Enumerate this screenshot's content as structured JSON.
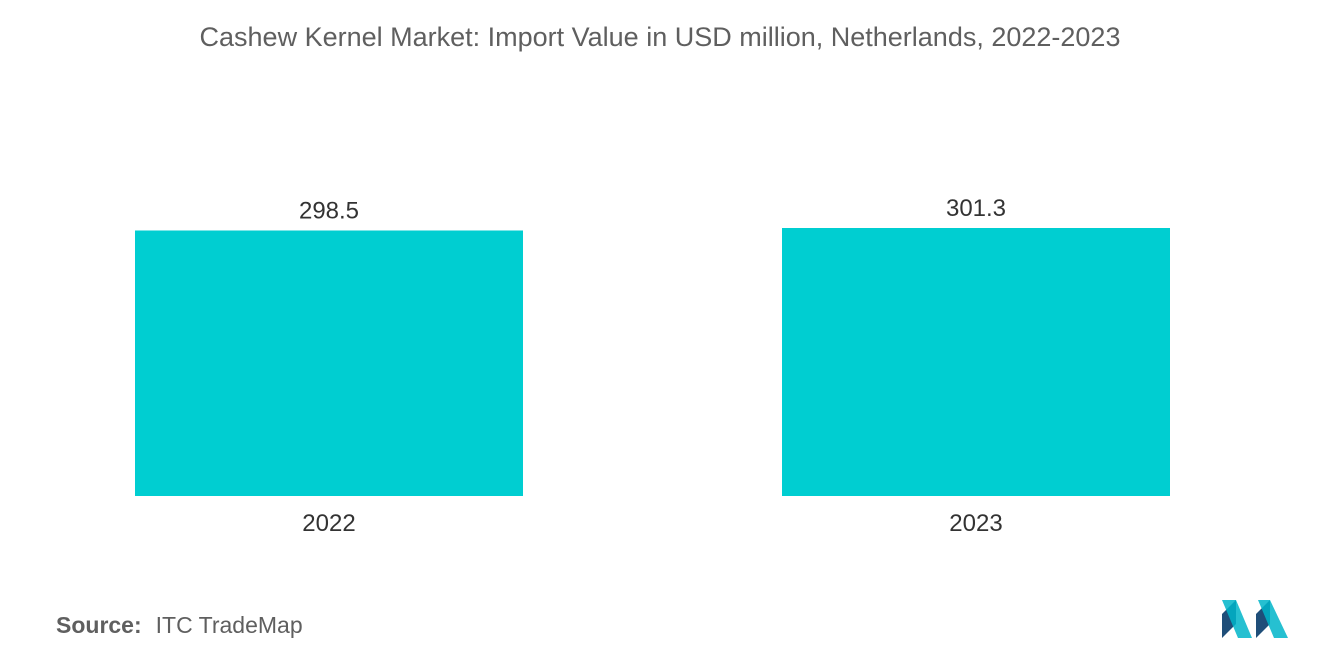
{
  "chart_data": {
    "type": "bar",
    "title": "Cashew Kernel Market: Import Value in USD million, Netherlands, 2022-2023",
    "categories": [
      "2022",
      "2023"
    ],
    "values": [
      298.5,
      301.3
    ],
    "data_labels": [
      "298.5",
      "301.3"
    ],
    "xlabel": "",
    "ylabel": "",
    "ylim": [
      0,
      301.3
    ],
    "grid": false,
    "legend": "none",
    "bar_color": "#00ced1"
  },
  "source": {
    "label": "Source:",
    "text": "ITC TradeMap"
  },
  "logo": {
    "icon": "mordor-intelligence-logo",
    "colors": [
      "#1f4e79",
      "#00b5c9"
    ]
  }
}
